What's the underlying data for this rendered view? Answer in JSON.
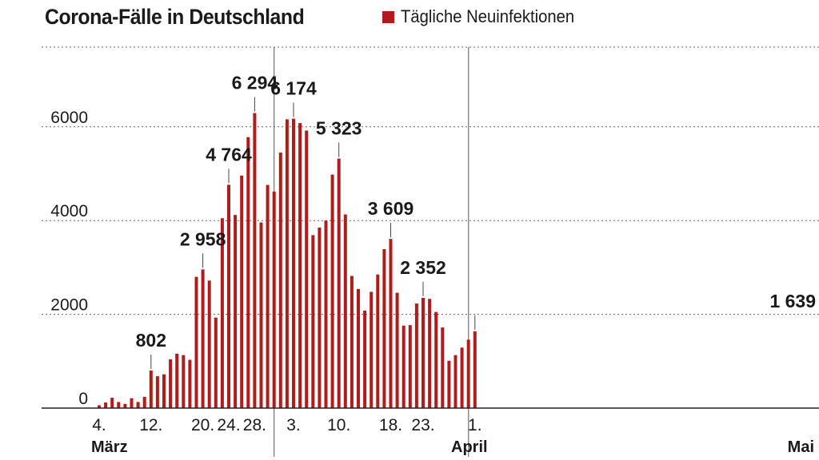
{
  "header": {
    "title": "Corona-Fälle in Deutschland",
    "legend_label": "Tägliche Neuinfektionen"
  },
  "colors": {
    "bar": "#b31b1b",
    "text": "#1a1a1a",
    "grid": "#666666"
  },
  "chart_data": {
    "type": "bar",
    "title": "Corona-Fälle in Deutschland",
    "xlabel": "",
    "ylabel": "",
    "ylim": [
      0,
      7700
    ],
    "yticks": [
      0,
      2000,
      4000,
      6000
    ],
    "grid": "horizontal-dotted",
    "legend_position": "top",
    "series": [
      {
        "name": "Tägliche Neuinfektionen",
        "x": [
          "2020-03-04",
          "2020-03-05",
          "2020-03-06",
          "2020-03-07",
          "2020-03-08",
          "2020-03-09",
          "2020-03-10",
          "2020-03-11",
          "2020-03-12",
          "2020-03-13",
          "2020-03-14",
          "2020-03-15",
          "2020-03-16",
          "2020-03-17",
          "2020-03-18",
          "2020-03-19",
          "2020-03-20",
          "2020-03-21",
          "2020-03-22",
          "2020-03-23",
          "2020-03-24",
          "2020-03-25",
          "2020-03-26",
          "2020-03-27",
          "2020-03-28",
          "2020-03-29",
          "2020-03-30",
          "2020-03-31",
          "2020-04-01",
          "2020-04-02",
          "2020-04-03",
          "2020-04-04",
          "2020-04-05",
          "2020-04-06",
          "2020-04-07",
          "2020-04-08",
          "2020-04-09",
          "2020-04-10",
          "2020-04-11",
          "2020-04-12",
          "2020-04-13",
          "2020-04-14",
          "2020-04-15",
          "2020-04-16",
          "2020-04-17",
          "2020-04-18",
          "2020-04-19",
          "2020-04-20",
          "2020-04-21",
          "2020-04-22",
          "2020-04-23",
          "2020-04-24",
          "2020-04-25",
          "2020-04-26",
          "2020-04-27",
          "2020-04-28",
          "2020-04-29",
          "2020-04-30",
          "2020-05-01"
        ],
        "values": [
          60,
          120,
          220,
          130,
          90,
          210,
          130,
          240,
          802,
          680,
          720,
          1040,
          1160,
          1130,
          1030,
          2800,
          2958,
          2720,
          1930,
          4050,
          4764,
          4120,
          4960,
          5780,
          6294,
          3960,
          4760,
          4620,
          5450,
          6160,
          6174,
          6080,
          5920,
          3690,
          3850,
          4000,
          4980,
          5323,
          4130,
          2820,
          2540,
          2080,
          2480,
          2850,
          3390,
          3609,
          2460,
          1760,
          1770,
          2230,
          2352,
          2330,
          2050,
          1720,
          1010,
          1130,
          1290,
          1460,
          1639
        ]
      }
    ],
    "x_tick_labels": [
      {
        "label": "4.",
        "x": "2020-03-04"
      },
      {
        "label": "12.",
        "x": "2020-03-12"
      },
      {
        "label": "20.",
        "x": "2020-03-20"
      },
      {
        "label": "24.",
        "x": "2020-03-24"
      },
      {
        "label": "28.",
        "x": "2020-03-28"
      },
      {
        "label": "3.",
        "x": "2020-04-03"
      },
      {
        "label": "10.",
        "x": "2020-04-10"
      },
      {
        "label": "18.",
        "x": "2020-04-18"
      },
      {
        "label": "23.",
        "x": "2020-04-23"
      },
      {
        "label": "1.",
        "x": "2020-05-01"
      }
    ],
    "month_labels": [
      {
        "label": "März",
        "x": "2020-03-04"
      },
      {
        "label": "April",
        "x": "2020-04-03"
      },
      {
        "label": "Mai",
        "x": "2020-05-01"
      }
    ],
    "month_dividers": [
      "2020-04-01",
      "2020-05-01"
    ],
    "annotations": [
      {
        "x": "2020-03-12",
        "text": "802"
      },
      {
        "x": "2020-03-20",
        "text": "2 958"
      },
      {
        "x": "2020-03-24",
        "text": "4 764"
      },
      {
        "x": "2020-03-28",
        "text": "6 294"
      },
      {
        "x": "2020-04-03",
        "text": "6 174"
      },
      {
        "x": "2020-04-10",
        "text": "5 323"
      },
      {
        "x": "2020-04-18",
        "text": "3 609"
      },
      {
        "x": "2020-04-23",
        "text": "2 352"
      },
      {
        "x": "2020-05-01",
        "text": "1 639"
      }
    ]
  }
}
